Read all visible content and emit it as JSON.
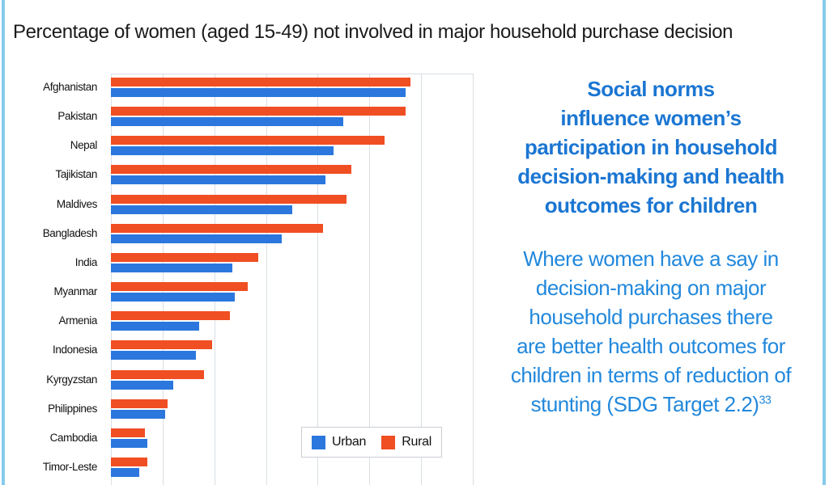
{
  "title": "Percentage of women (aged 15-49) not involved in major household purchase decision",
  "chart_data": {
    "type": "bar",
    "orientation": "horizontal",
    "title": "Percentage of women (aged 15-49) not involved in major household purchase decision",
    "categories": [
      "Afghanistan",
      "Pakistan",
      "Nepal",
      "Tajikistan",
      "Maldives",
      "Bangladesh",
      "India",
      "Myanmar",
      "Armenia",
      "Indonesia",
      "Kyrgyzstan",
      "Philippines",
      "Cambodia",
      "Timor-Leste"
    ],
    "series": [
      {
        "name": "Urban",
        "color": "#2b77de",
        "values": [
          57,
          45,
          43,
          41.5,
          35,
          33,
          23.5,
          24,
          17,
          16.5,
          12,
          10.5,
          7,
          5.5
        ]
      },
      {
        "name": "Rural",
        "color": "#f04e23",
        "values": [
          58,
          57,
          53,
          46.5,
          45.5,
          41,
          28.5,
          26.5,
          23,
          19.5,
          18,
          11,
          6.5,
          7
        ]
      }
    ],
    "xlim": [
      0,
      70
    ],
    "gridline_interval": 10,
    "grid": true,
    "axis_tick_labels_visible": false,
    "legend_position": "inside-bottom-right",
    "bar_order_per_category": [
      "Rural",
      "Urban"
    ]
  },
  "panel": {
    "heading": "Social norms\ninfluence women’s\nparticipation in household\ndecision-making and health\noutcomes for children",
    "body": "Where women have a say in\ndecision-making on major\nhousehold purchases there\nare better health outcomes for\nchildren in terms of reduction of\nstunting (SDG Target 2.2)",
    "footnote_marker": "33"
  },
  "colors": {
    "frame_border": "#86cbec",
    "gridline": "#d8dfe4",
    "heading_blue": "#1b76d2",
    "body_blue": "#2288dc",
    "title_text": "#1b1b1b"
  }
}
